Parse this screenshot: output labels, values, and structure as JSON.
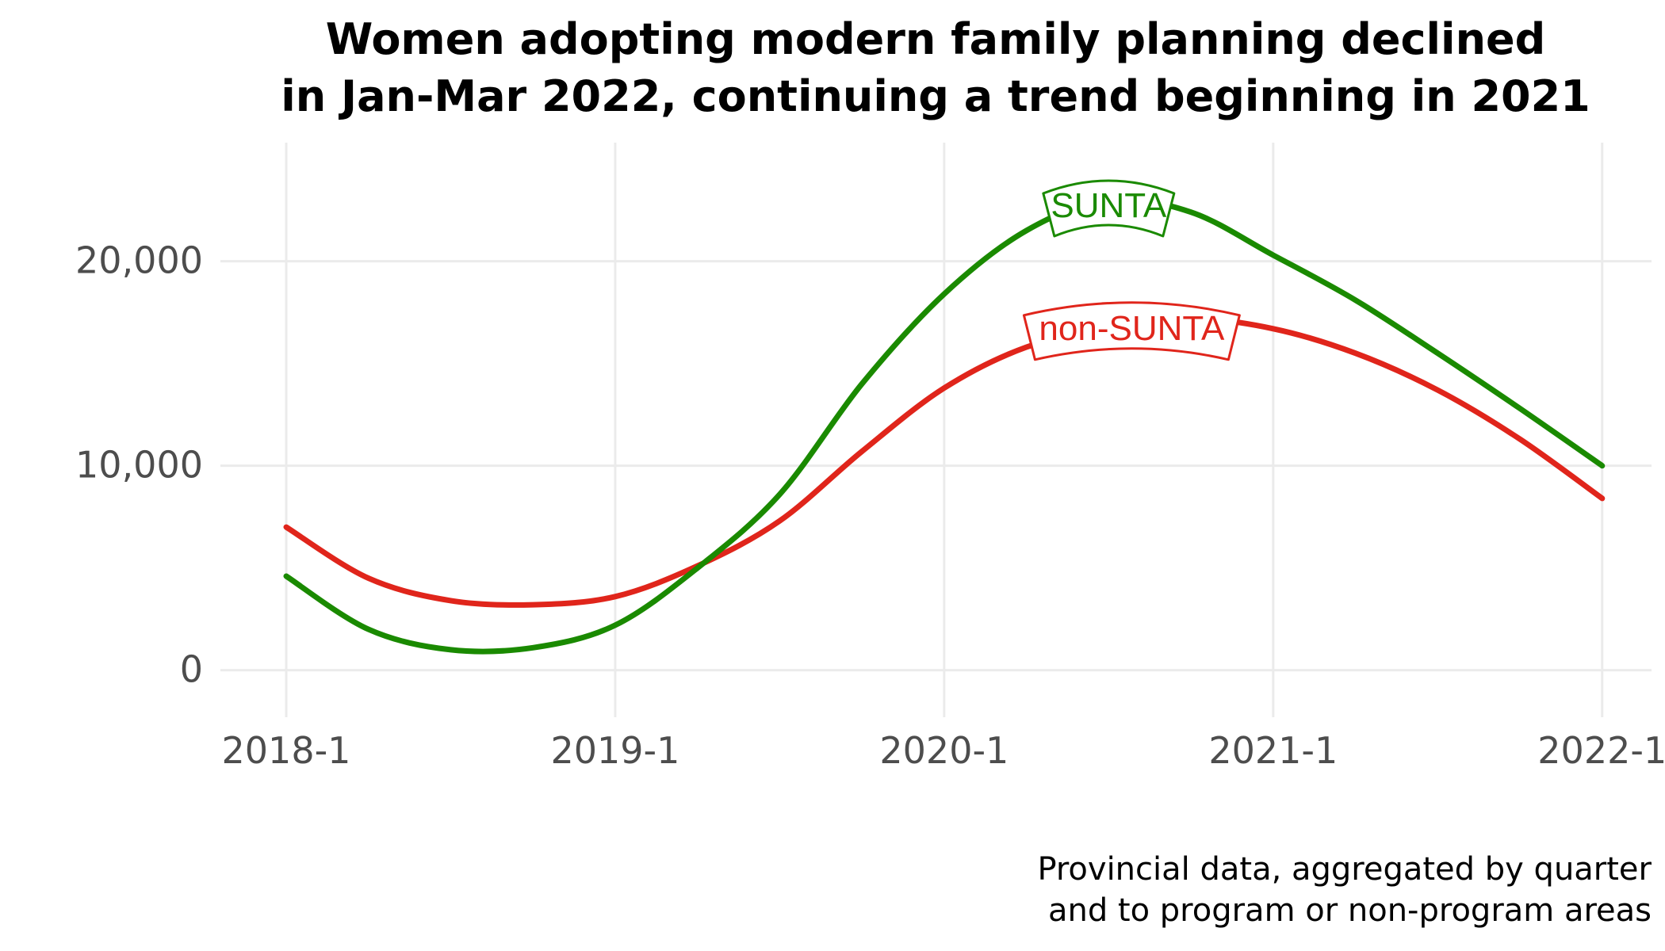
{
  "chart_data": {
    "type": "line",
    "title": "Women adopting modern family planning declined in Jan-Mar 2022, continuing a trend beginning in 2021",
    "title_lines": [
      "Women adopting modern family planning declined",
      "in Jan-Mar 2022, continuing a trend beginning in 2021"
    ],
    "caption_lines": [
      "Provincial data, aggregated by quarter",
      "and to program or non-program areas"
    ],
    "xlabel": "",
    "ylabel": "",
    "x_ticks": [
      "2018-1",
      "2019-1",
      "2020-1",
      "2021-1",
      "2022-1"
    ],
    "x_tick_values": [
      2018,
      2019,
      2020,
      2021,
      2022
    ],
    "y_ticks": [
      0,
      10000,
      20000
    ],
    "y_tick_labels": [
      "0",
      "10,000",
      "20,000"
    ],
    "xlim": [
      2017.8,
      2022.15
    ],
    "ylim": [
      -2300,
      25800
    ],
    "grid": true,
    "legend": "none (direct labels on lines)",
    "series": [
      {
        "name": "SUNTA",
        "color": "#1a8a00",
        "x": [
          2018.0,
          2018.25,
          2018.5,
          2018.75,
          2019.0,
          2019.25,
          2019.5,
          2019.75,
          2020.0,
          2020.25,
          2020.5,
          2020.75,
          2021.0,
          2021.25,
          2021.5,
          2021.75,
          2022.0
        ],
        "values": [
          4600,
          2000,
          1000,
          1100,
          2200,
          5000,
          8600,
          14000,
          18400,
          21500,
          23000,
          22400,
          20300,
          18100,
          15500,
          12800,
          10000
        ]
      },
      {
        "name": "non-SUNTA",
        "color": "#e0251b",
        "x": [
          2018.0,
          2018.25,
          2018.5,
          2018.75,
          2019.0,
          2019.25,
          2019.5,
          2019.75,
          2020.0,
          2020.25,
          2020.5,
          2020.75,
          2021.0,
          2021.25,
          2021.5,
          2021.75,
          2022.0
        ],
        "values": [
          7000,
          4500,
          3400,
          3200,
          3600,
          5100,
          7300,
          10700,
          13800,
          15800,
          16700,
          17200,
          16700,
          15500,
          13700,
          11300,
          8400
        ]
      }
    ]
  }
}
